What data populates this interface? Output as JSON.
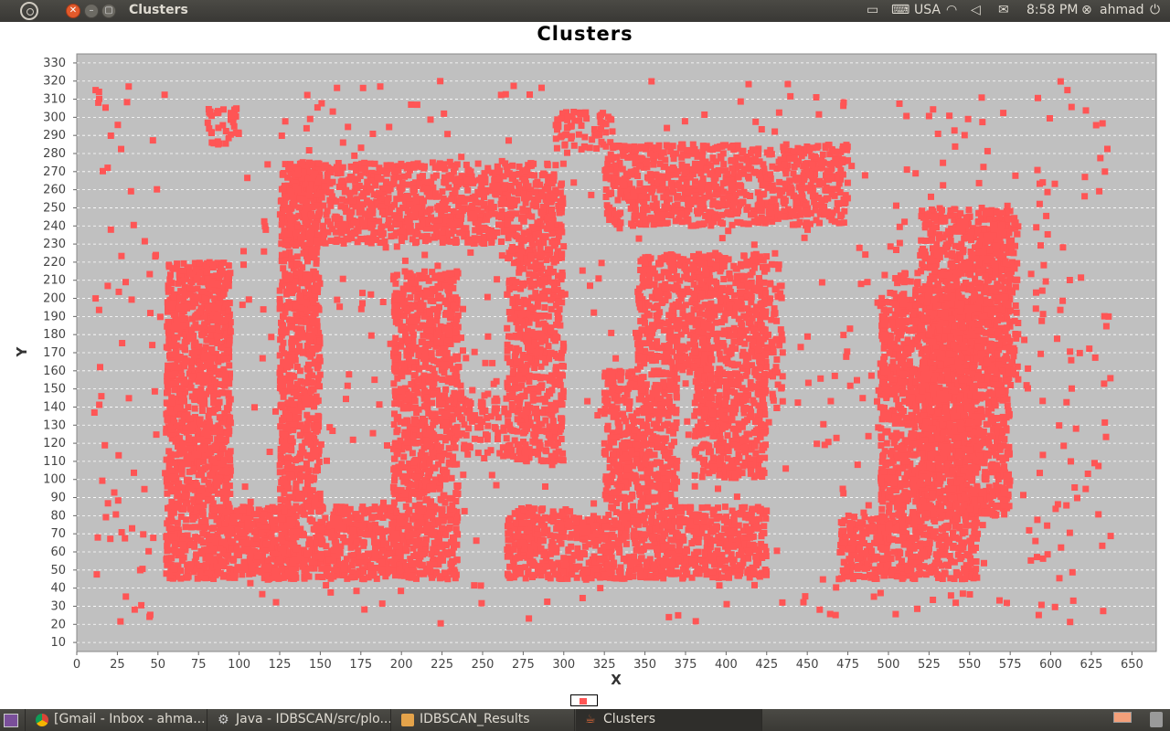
{
  "window": {
    "title": "Clusters"
  },
  "panel": {
    "keyboard_layout": "USA",
    "clock": "8:58 PM",
    "user": "ahmad",
    "icons": [
      "ubuntu-logo-icon",
      "display-icon",
      "keyboard-icon",
      "wifi-icon",
      "volume-mute-icon",
      "mail-icon",
      "user-icon",
      "power-icon"
    ]
  },
  "taskbar": {
    "items": [
      {
        "label": "[Gmail - Inbox - ahma...",
        "icon": "chrome-icon"
      },
      {
        "label": "Java - IDBSCAN/src/plo...",
        "icon": "eclipse-icon"
      },
      {
        "label": "IDBSCAN_Results",
        "icon": "folder-icon"
      },
      {
        "label": "Clusters",
        "icon": "java-icon"
      }
    ]
  },
  "chart_data": {
    "type": "scatter",
    "title": "Clusters",
    "xlabel": "X",
    "ylabel": "Y",
    "xlim": [
      0,
      665
    ],
    "ylim": [
      5,
      335
    ],
    "xticks": [
      0,
      25,
      50,
      75,
      100,
      125,
      150,
      175,
      200,
      225,
      250,
      275,
      300,
      325,
      350,
      375,
      400,
      425,
      450,
      475,
      500,
      525,
      550,
      575,
      600,
      625,
      650
    ],
    "yticks": [
      10,
      20,
      30,
      40,
      50,
      60,
      70,
      80,
      90,
      100,
      110,
      120,
      130,
      140,
      150,
      160,
      170,
      180,
      190,
      200,
      210,
      220,
      230,
      240,
      250,
      260,
      270,
      280,
      290,
      300,
      310,
      320,
      330
    ],
    "grid": "horizontal",
    "legend": "bottom",
    "colors": {
      "point": "#ff5555",
      "background": "#c0c0c0",
      "grid": "#ffffff"
    },
    "series": [
      {
        "description": "dense clustered point regions (x0,x1,y0,y1 in data units, point density)",
        "regions": [
          [
            55,
            95,
            45,
            220,
            2.2
          ],
          [
            95,
            135,
            45,
            85,
            2.2
          ],
          [
            125,
            150,
            45,
            275,
            1.8
          ],
          [
            150,
            175,
            45,
            85,
            2.0
          ],
          [
            175,
            200,
            45,
            85,
            2.0
          ],
          [
            130,
            185,
            230,
            275,
            1.6
          ],
          [
            185,
            300,
            230,
            275,
            1.6
          ],
          [
            195,
            235,
            45,
            215,
            1.8
          ],
          [
            235,
            265,
            110,
            150,
            0.8
          ],
          [
            265,
            300,
            110,
            230,
            1.6
          ],
          [
            265,
            305,
            45,
            85,
            1.8
          ],
          [
            305,
            330,
            45,
            80,
            1.8
          ],
          [
            325,
            370,
            45,
            160,
            1.8
          ],
          [
            370,
            425,
            45,
            85,
            1.8
          ],
          [
            325,
            475,
            240,
            285,
            1.6
          ],
          [
            345,
            390,
            160,
            225,
            1.6
          ],
          [
            380,
            425,
            100,
            225,
            1.6
          ],
          [
            420,
            435,
            130,
            220,
            0.8
          ],
          [
            470,
            500,
            45,
            80,
            1.8
          ],
          [
            495,
            555,
            45,
            200,
            1.8
          ],
          [
            520,
            575,
            80,
            250,
            1.6
          ],
          [
            555,
            580,
            150,
            245,
            1.2
          ],
          [
            500,
            545,
            195,
            215,
            1.0
          ],
          [
            80,
            100,
            285,
            305,
            1.2
          ],
          [
            295,
            330,
            280,
            303,
            1.0
          ],
          [
            590,
            640,
            20,
            320,
            0.06
          ],
          [
            10,
            55,
            20,
            320,
            0.06
          ],
          [
            440,
            600,
            20,
            320,
            0.05
          ],
          [
            100,
            440,
            20,
            320,
            0.04
          ]
        ]
      }
    ]
  }
}
